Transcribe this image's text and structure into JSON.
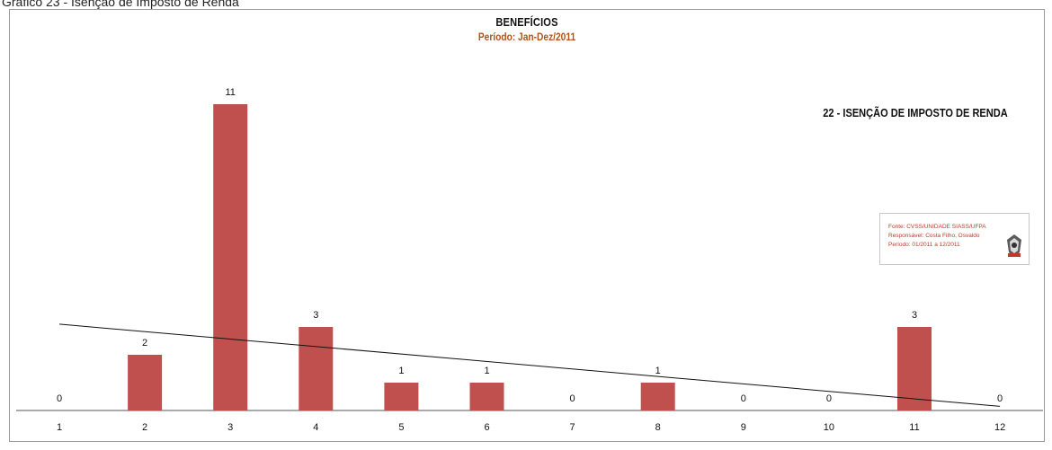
{
  "caption": "Gráfico 23 - Isenção de Imposto de Renda",
  "chart_data": {
    "type": "bar",
    "title": "BENEFÍCIOS",
    "subtitle": "Período: Jan-Dez/2011",
    "heading": "22 - ISENÇÃO DE IMPOSTO DE RENDA",
    "categories": [
      "1",
      "2",
      "3",
      "4",
      "5",
      "6",
      "7",
      "8",
      "9",
      "10",
      "11",
      "12"
    ],
    "values": [
      0,
      2,
      11,
      3,
      1,
      1,
      0,
      1,
      0,
      0,
      3,
      0
    ],
    "ylim": [
      0,
      11
    ],
    "trendline": {
      "type": "linear",
      "start": 3.1,
      "end": 0.15
    },
    "bar_color": "#c0504d",
    "subtitle_color": "#b0531c",
    "grid": false,
    "legend": "none"
  },
  "source_box": {
    "lines": [
      "Fonte: CVSS/UNIDADE SIASS/UFPA",
      "Responsável: Costa Filho, Osvaldo",
      "Período: 01/2011 a 12/2011"
    ],
    "color": "#c0392b"
  }
}
